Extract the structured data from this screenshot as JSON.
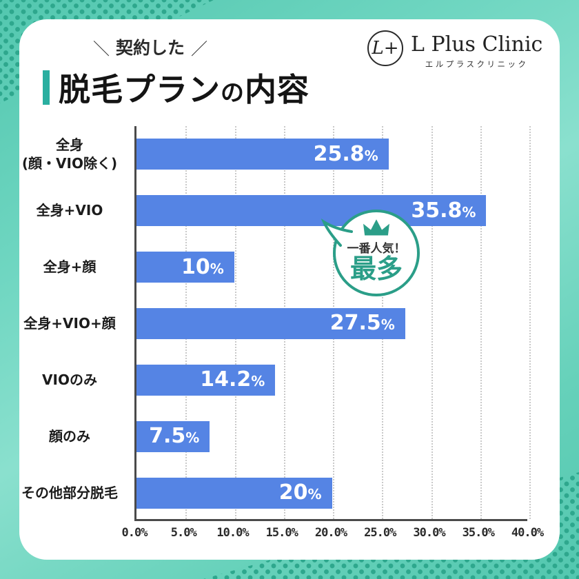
{
  "header": {
    "tagline_decor_left": "＼",
    "tagline": "契約した",
    "tagline_decor_right": "／",
    "title_part1": "脱毛プラン",
    "title_particle": "の",
    "title_part2": "内容"
  },
  "logo": {
    "monogram": "L+",
    "name": "L Plus Clinic",
    "kana": "エルプラスクリニック"
  },
  "badge": {
    "top_label": "一番人気！",
    "main_label": "最多"
  },
  "chart_data": {
    "type": "bar",
    "orientation": "horizontal",
    "title": "契約した脱毛プランの内容",
    "categories": [
      "全身\n(顔・VIO除く)",
      "全身+VIO",
      "全身+顔",
      "全身+VIO+顔",
      "VIOのみ",
      "顔のみ",
      "その他部分脱毛"
    ],
    "values": [
      25.8,
      35.8,
      10,
      27.5,
      14.2,
      7.5,
      20
    ],
    "value_labels": [
      "25.8",
      "35.8",
      "10",
      "27.5",
      "14.2",
      "7.5",
      "20"
    ],
    "unit": "%",
    "x_ticks": [
      "0.0%",
      "5.0%",
      "10.0%",
      "15.0%",
      "20.0%",
      "25.0%",
      "30.0%",
      "35.0%",
      "40.0%"
    ],
    "xlim": [
      0,
      40
    ],
    "grid": "vertical dotted",
    "legend": "none",
    "highlight_index": 1
  },
  "colors": {
    "bar": "#5584E4",
    "accent_teal": "#2AAFA0",
    "badge_teal": "#2B9E88",
    "background_teal": "#5FCDB6",
    "corner_dots": "#2EA78D",
    "card": "#FFFFFF",
    "axis": "#4A4A4A",
    "text": "#1C1C1C",
    "bar_label": "#FFFFFF"
  }
}
